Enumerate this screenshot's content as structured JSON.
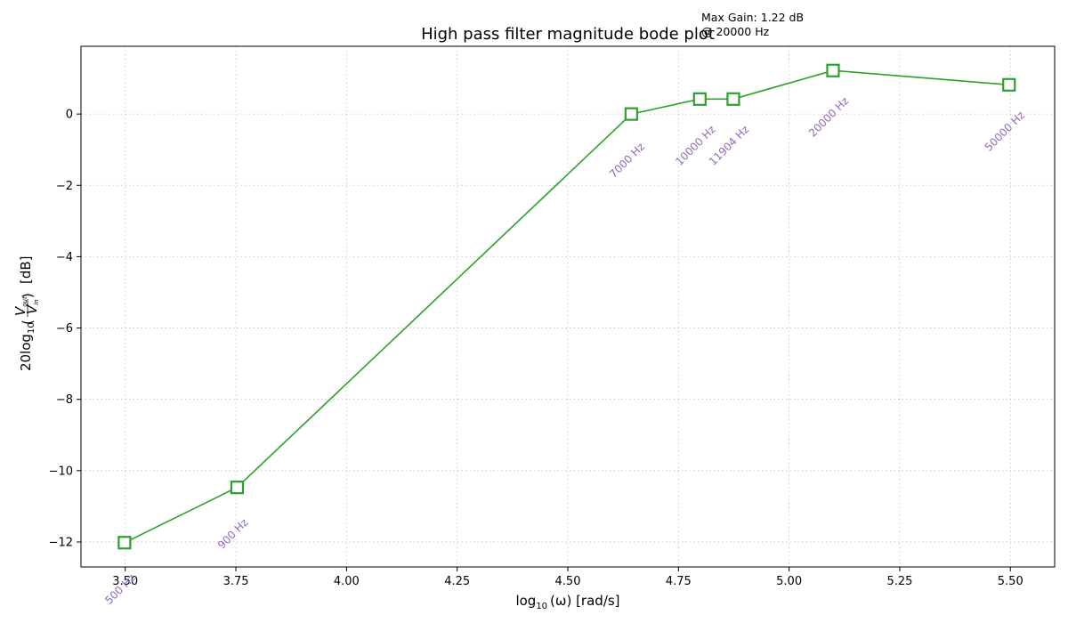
{
  "chart_data": {
    "type": "line",
    "title": "High pass filter magnitude bode plot",
    "xlabel": "log",
    "xlabel_sub": "10",
    "xlabel_rest": "(ω) [rad/s]",
    "ylabel_main": "20log",
    "ylabel_sub": "10",
    "ylabel_num": "V",
    "ylabel_num_sub": "out",
    "ylabel_den": "V",
    "ylabel_den_sub": "in",
    "ylabel_unit": "[dB]",
    "xlim": [
      3.4,
      5.6
    ],
    "ylim": [
      -12.7,
      1.9
    ],
    "xticks": [
      3.5,
      3.75,
      4.0,
      4.25,
      4.5,
      4.75,
      5.0,
      5.25,
      5.5
    ],
    "xtick_labels": [
      "3.50",
      "3.75",
      "4.00",
      "4.25",
      "4.50",
      "4.75",
      "5.00",
      "5.25",
      "5.50"
    ],
    "yticks": [
      -12,
      -10,
      -8,
      -6,
      -4,
      -2,
      0
    ],
    "ytick_labels": [
      "−12",
      "−10",
      "−8",
      "−6",
      "−4",
      "−2",
      "0"
    ],
    "grid": true,
    "line_color": "#2ca02c",
    "label_color": "#9467bd",
    "series": [
      {
        "x": [
          3.4983,
          3.7528,
          4.6435,
          4.7982,
          4.8739,
          5.0992,
          5.4969
        ],
        "y": [
          -12.02,
          -10.47,
          0.0,
          0.42,
          0.42,
          1.22,
          0.82
        ],
        "labels": [
          "500 Hz",
          "900 Hz",
          "7000 Hz",
          "10000 Hz",
          "11904 Hz",
          "20000 Hz",
          "50000 Hz"
        ]
      }
    ],
    "annotation": {
      "line1": "Max Gain: 1.22 dB",
      "line2": "@ 20000 Hz"
    }
  }
}
